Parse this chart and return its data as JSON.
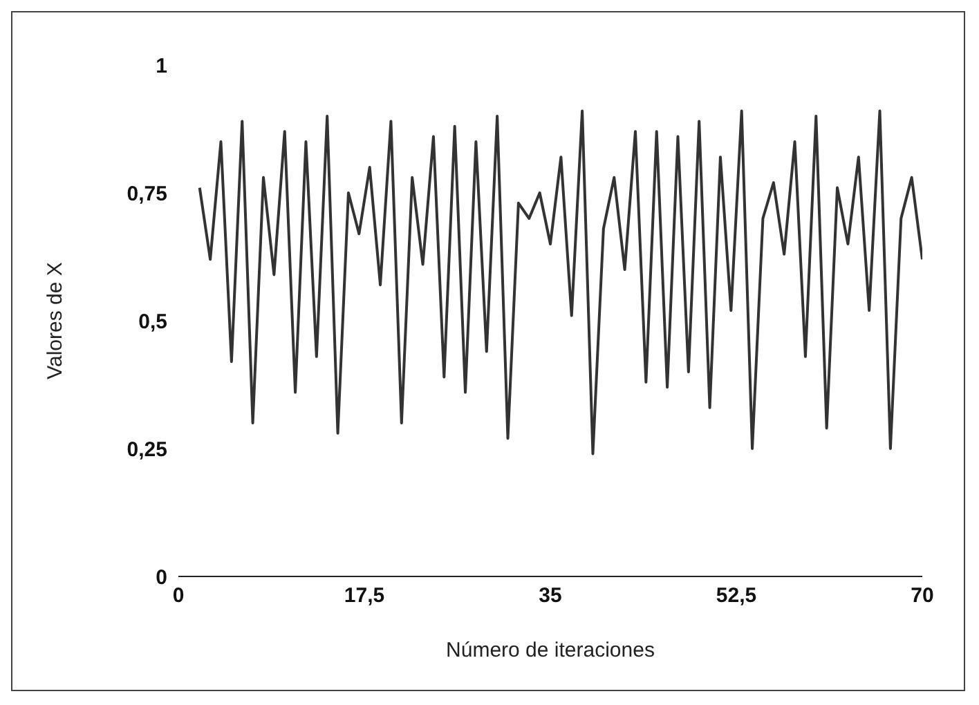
{
  "chart_data": {
    "type": "line",
    "xlabel": "Número de iteraciones",
    "ylabel": "Valores de X",
    "x": [
      2,
      3,
      4,
      5,
      6,
      7,
      8,
      9,
      10,
      11,
      12,
      13,
      14,
      15,
      16,
      17,
      18,
      19,
      20,
      21,
      22,
      23,
      24,
      25,
      26,
      27,
      28,
      29,
      30,
      31,
      32,
      33,
      34,
      35,
      36,
      37,
      38,
      39,
      40,
      41,
      42,
      43,
      44,
      45,
      46,
      47,
      48,
      49,
      50,
      51,
      52,
      53,
      54,
      55,
      56,
      57,
      58,
      59,
      60,
      61,
      62,
      63,
      64,
      65,
      66,
      67,
      68,
      69,
      70
    ],
    "series": [
      {
        "color": "#333333",
        "values": [
          0.76,
          0.62,
          0.85,
          0.42,
          0.89,
          0.3,
          0.78,
          0.59,
          0.87,
          0.36,
          0.85,
          0.43,
          0.9,
          0.28,
          0.75,
          0.67,
          0.8,
          0.57,
          0.89,
          0.3,
          0.78,
          0.61,
          0.86,
          0.39,
          0.88,
          0.36,
          0.85,
          0.44,
          0.9,
          0.27,
          0.73,
          0.7,
          0.75,
          0.65,
          0.82,
          0.51,
          0.91,
          0.24,
          0.68,
          0.78,
          0.6,
          0.87,
          0.38,
          0.87,
          0.37,
          0.86,
          0.4,
          0.89,
          0.33,
          0.82,
          0.52,
          0.91,
          0.25,
          0.7,
          0.77,
          0.63,
          0.85,
          0.43,
          0.9,
          0.29,
          0.76,
          0.65,
          0.82,
          0.52,
          0.91,
          0.25,
          0.7,
          0.78,
          0.62
        ]
      }
    ],
    "xlim": [
      0,
      70
    ],
    "xticks": [
      0,
      {
        "value": 17.5,
        "label": "17,5"
      },
      35,
      {
        "value": 52.5,
        "label": "52,5"
      },
      70
    ],
    "ylim": [
      0,
      1
    ],
    "yticks": [
      0,
      {
        "value": 0.25,
        "label": "0,25"
      },
      {
        "value": 0.5,
        "label": "0,5"
      },
      {
        "value": 0.75,
        "label": "0,75"
      },
      1
    ],
    "grid": false,
    "legend": false,
    "marker": "none",
    "line_style": "solid"
  }
}
